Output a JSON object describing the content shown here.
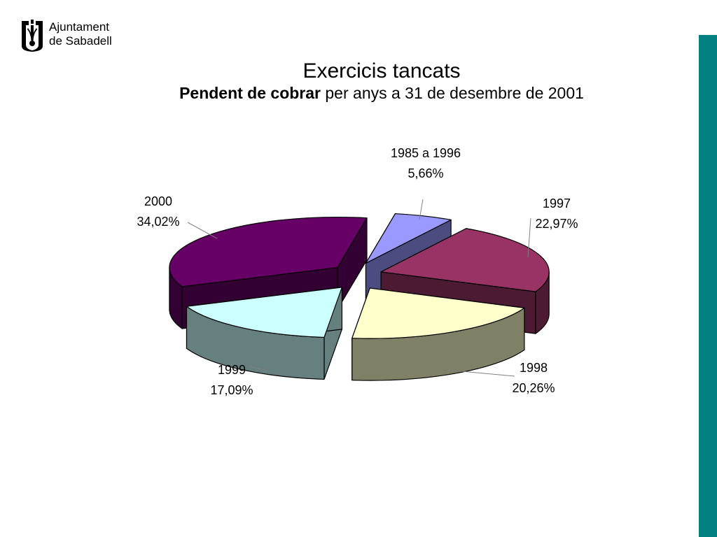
{
  "logo": {
    "line1": "Ajuntament",
    "line2": "de Sabadell"
  },
  "accent_color": "#008080",
  "chart_data": {
    "type": "pie",
    "style": "3d-exploded",
    "title": "Exercicis tancats",
    "subtitle_bold": "Pendent de cobrar",
    "subtitle_rest": " per anys a 31 de desembre de 2001",
    "legend": "none",
    "slices": [
      {
        "label": "1985 a 1996",
        "value": 5.66,
        "value_label": "5,66%",
        "color": "#9999ff",
        "side_color": "#4c4c80"
      },
      {
        "label": "1997",
        "value": 22.97,
        "value_label": "22,97%",
        "color": "#993366",
        "side_color": "#4c1a33"
      },
      {
        "label": "1998",
        "value": 20.26,
        "value_label": "20,26%",
        "color": "#ffffcc",
        "side_color": "#808066"
      },
      {
        "label": "1999",
        "value": 17.09,
        "value_label": "17,09%",
        "color": "#ccffff",
        "side_color": "#668080"
      },
      {
        "label": "2000",
        "value": 34.02,
        "value_label": "34,02%",
        "color": "#660066",
        "side_color": "#330033"
      }
    ]
  }
}
